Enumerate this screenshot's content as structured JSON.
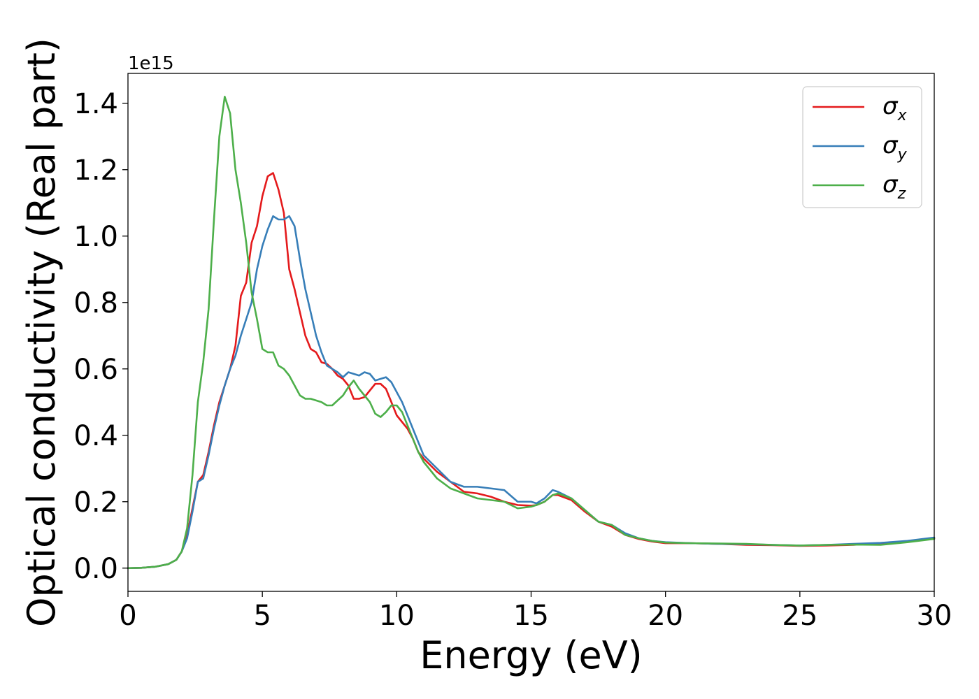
{
  "chart_data": {
    "type": "line",
    "xlabel": "Energy (eV)",
    "ylabel": "Optical conductivity (Real part)",
    "y_offset_text": "1e15",
    "y_scale": 1000000000000000.0,
    "xlim": [
      0,
      30
    ],
    "ylim": [
      -0.07,
      1.49
    ],
    "x_ticks": [
      0,
      5,
      10,
      15,
      20,
      25,
      30
    ],
    "x_tick_labels": [
      "0",
      "5",
      "10",
      "15",
      "20",
      "25",
      "30"
    ],
    "y_ticks": [
      0.0,
      0.2,
      0.4,
      0.6,
      0.8,
      1.0,
      1.2,
      1.4
    ],
    "y_tick_labels": [
      "0.0",
      "0.2",
      "0.4",
      "0.6",
      "0.8",
      "1.0",
      "1.2",
      "1.4"
    ],
    "grid": false,
    "legend_position": "top-right",
    "series": [
      {
        "name": "σx",
        "symbol": "σ",
        "subscript": "x",
        "color": "#e41a1c",
        "x": [
          0,
          0.5,
          1,
          1.5,
          1.8,
          2,
          2.2,
          2.4,
          2.6,
          2.8,
          3,
          3.2,
          3.4,
          3.6,
          3.8,
          4,
          4.2,
          4.4,
          4.6,
          4.8,
          5,
          5.2,
          5.4,
          5.6,
          5.8,
          6,
          6.2,
          6.4,
          6.6,
          6.8,
          7,
          7.2,
          7.4,
          7.6,
          7.8,
          8,
          8.2,
          8.4,
          8.6,
          8.8,
          9,
          9.2,
          9.4,
          9.6,
          9.8,
          10,
          10.2,
          10.4,
          10.6,
          10.8,
          11,
          11.5,
          12,
          12.5,
          13,
          13.5,
          14,
          14.5,
          15,
          15.2,
          15.5,
          15.8,
          16,
          16.5,
          17,
          17.5,
          18,
          18.5,
          19,
          19.5,
          20,
          21,
          22,
          23,
          24,
          25,
          26,
          27,
          28,
          29,
          30
        ],
        "y": [
          0,
          0.001,
          0.004,
          0.012,
          0.025,
          0.05,
          0.1,
          0.18,
          0.26,
          0.28,
          0.35,
          0.43,
          0.5,
          0.55,
          0.6,
          0.67,
          0.82,
          0.86,
          0.98,
          1.03,
          1.12,
          1.18,
          1.19,
          1.14,
          1.07,
          0.9,
          0.84,
          0.77,
          0.7,
          0.66,
          0.65,
          0.62,
          0.615,
          0.6,
          0.58,
          0.57,
          0.55,
          0.51,
          0.51,
          0.515,
          0.535,
          0.555,
          0.555,
          0.54,
          0.5,
          0.46,
          0.44,
          0.42,
          0.39,
          0.35,
          0.33,
          0.29,
          0.26,
          0.23,
          0.225,
          0.215,
          0.2,
          0.19,
          0.188,
          0.19,
          0.2,
          0.22,
          0.22,
          0.205,
          0.17,
          0.14,
          0.125,
          0.1,
          0.088,
          0.08,
          0.075,
          0.075,
          0.073,
          0.07,
          0.069,
          0.067,
          0.068,
          0.07,
          0.075,
          0.08,
          0.09
        ]
      },
      {
        "name": "σy",
        "symbol": "σ",
        "subscript": "y",
        "color": "#377eb8",
        "x": [
          0,
          0.5,
          1,
          1.5,
          1.8,
          2,
          2.2,
          2.4,
          2.6,
          2.8,
          3,
          3.2,
          3.4,
          3.6,
          3.8,
          4,
          4.2,
          4.4,
          4.6,
          4.8,
          5,
          5.2,
          5.4,
          5.6,
          5.8,
          6,
          6.2,
          6.4,
          6.6,
          6.8,
          7,
          7.2,
          7.4,
          7.6,
          7.8,
          8,
          8.2,
          8.4,
          8.6,
          8.8,
          9,
          9.2,
          9.4,
          9.6,
          9.8,
          10,
          10.2,
          10.4,
          10.6,
          10.8,
          11,
          11.5,
          12,
          12.5,
          13,
          13.5,
          14,
          14.5,
          15,
          15.2,
          15.5,
          15.8,
          16,
          16.5,
          17,
          17.5,
          18,
          18.5,
          19,
          19.5,
          20,
          21,
          22,
          23,
          24,
          25,
          26,
          27,
          28,
          29,
          30
        ],
        "y": [
          0,
          0.001,
          0.004,
          0.012,
          0.025,
          0.05,
          0.09,
          0.17,
          0.26,
          0.27,
          0.34,
          0.42,
          0.49,
          0.55,
          0.6,
          0.64,
          0.7,
          0.75,
          0.8,
          0.9,
          0.97,
          1.02,
          1.06,
          1.05,
          1.05,
          1.06,
          1.03,
          0.93,
          0.84,
          0.77,
          0.7,
          0.65,
          0.61,
          0.6,
          0.59,
          0.575,
          0.59,
          0.585,
          0.58,
          0.59,
          0.585,
          0.565,
          0.57,
          0.575,
          0.56,
          0.53,
          0.5,
          0.46,
          0.42,
          0.38,
          0.34,
          0.3,
          0.26,
          0.245,
          0.245,
          0.24,
          0.235,
          0.2,
          0.2,
          0.195,
          0.21,
          0.235,
          0.23,
          0.21,
          0.175,
          0.14,
          0.13,
          0.105,
          0.09,
          0.082,
          0.078,
          0.075,
          0.073,
          0.072,
          0.07,
          0.068,
          0.07,
          0.073,
          0.076,
          0.082,
          0.092
        ]
      },
      {
        "name": "σz",
        "symbol": "σ",
        "subscript": "z",
        "color": "#4daf4a",
        "x": [
          0,
          0.5,
          1,
          1.5,
          1.8,
          2,
          2.2,
          2.4,
          2.6,
          2.8,
          3,
          3.2,
          3.4,
          3.6,
          3.8,
          4,
          4.2,
          4.4,
          4.6,
          4.8,
          5,
          5.2,
          5.4,
          5.6,
          5.8,
          6,
          6.2,
          6.4,
          6.6,
          6.8,
          7,
          7.2,
          7.4,
          7.6,
          7.8,
          8,
          8.2,
          8.4,
          8.6,
          8.8,
          9,
          9.2,
          9.4,
          9.6,
          9.8,
          10,
          10.2,
          10.4,
          10.6,
          10.8,
          11,
          11.5,
          12,
          12.5,
          13,
          13.5,
          14,
          14.5,
          15,
          15.2,
          15.5,
          15.8,
          16,
          16.5,
          17,
          17.5,
          18,
          18.5,
          19,
          19.5,
          20,
          21,
          22,
          23,
          24,
          25,
          26,
          27,
          28,
          29,
          30
        ],
        "y": [
          0,
          0.001,
          0.004,
          0.012,
          0.025,
          0.05,
          0.12,
          0.28,
          0.5,
          0.62,
          0.78,
          1.05,
          1.3,
          1.42,
          1.37,
          1.2,
          1.1,
          0.98,
          0.83,
          0.75,
          0.66,
          0.65,
          0.65,
          0.61,
          0.6,
          0.58,
          0.55,
          0.52,
          0.51,
          0.51,
          0.505,
          0.5,
          0.49,
          0.49,
          0.505,
          0.52,
          0.545,
          0.565,
          0.54,
          0.52,
          0.5,
          0.465,
          0.455,
          0.47,
          0.49,
          0.49,
          0.47,
          0.43,
          0.39,
          0.35,
          0.32,
          0.27,
          0.24,
          0.225,
          0.21,
          0.205,
          0.2,
          0.18,
          0.185,
          0.19,
          0.2,
          0.22,
          0.225,
          0.21,
          0.175,
          0.14,
          0.13,
          0.1,
          0.09,
          0.082,
          0.077,
          0.075,
          0.074,
          0.073,
          0.07,
          0.068,
          0.07,
          0.071,
          0.07,
          0.078,
          0.088
        ]
      }
    ]
  }
}
